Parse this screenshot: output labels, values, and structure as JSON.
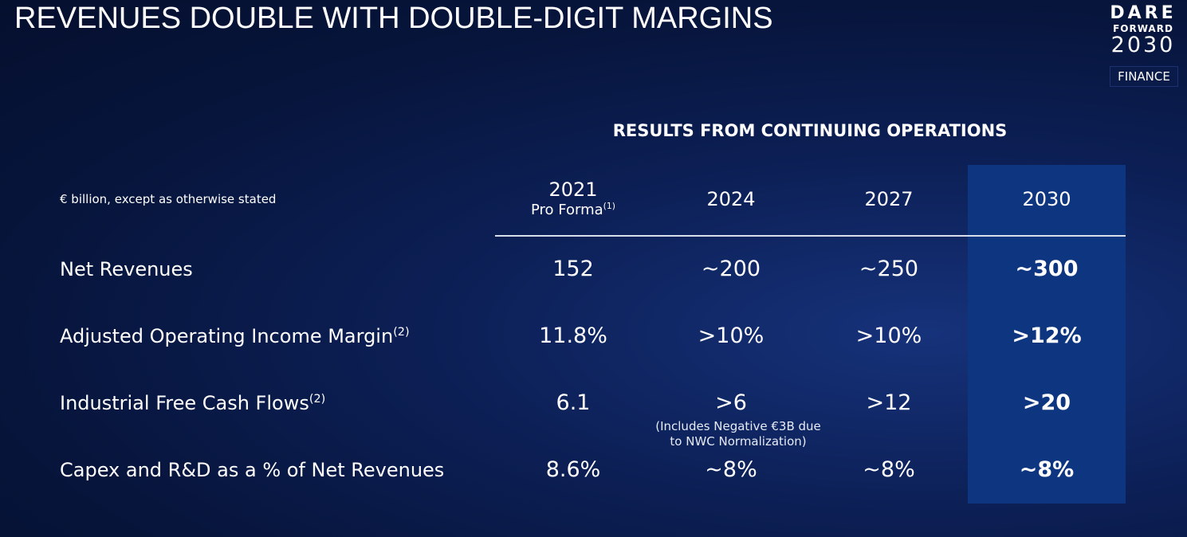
{
  "title": "REVENUES DOUBLE WITH DOUBLE-DIGIT MARGINS",
  "logo": {
    "line1": "DARE",
    "line2": "FORWARD",
    "line3": "2030"
  },
  "badge": "FINANCE",
  "section_heading": "RESULTS FROM CONTINUING OPERATIONS",
  "units_note": "€ billion, except as otherwise stated",
  "columns": [
    {
      "year": "2021",
      "sub": "Pro Forma",
      "sup": "(1)"
    },
    {
      "year": "2024"
    },
    {
      "year": "2027"
    },
    {
      "year": "2030",
      "highlighted": true
    }
  ],
  "highlight_color": "#0e3580",
  "rows": [
    {
      "label": "Net Revenues",
      "values": [
        "152",
        "~200",
        "~250",
        "~300"
      ]
    },
    {
      "label": "Adjusted Operating Income Margin",
      "sup": "(2)",
      "values": [
        "11.8%",
        ">10%",
        ">10%",
        ">12%"
      ]
    },
    {
      "label": "Industrial Free Cash Flows",
      "sup": "(2)",
      "values": [
        "6.1",
        ">6",
        ">12",
        ">20"
      ],
      "note_line1": "(Includes Negative €3B due",
      "note_line2": "to NWC Normalization)"
    },
    {
      "label": "Capex and R&D as a % of Net Revenues",
      "values": [
        "8.6%",
        "~8%",
        "~8%",
        "~8%"
      ]
    }
  ]
}
